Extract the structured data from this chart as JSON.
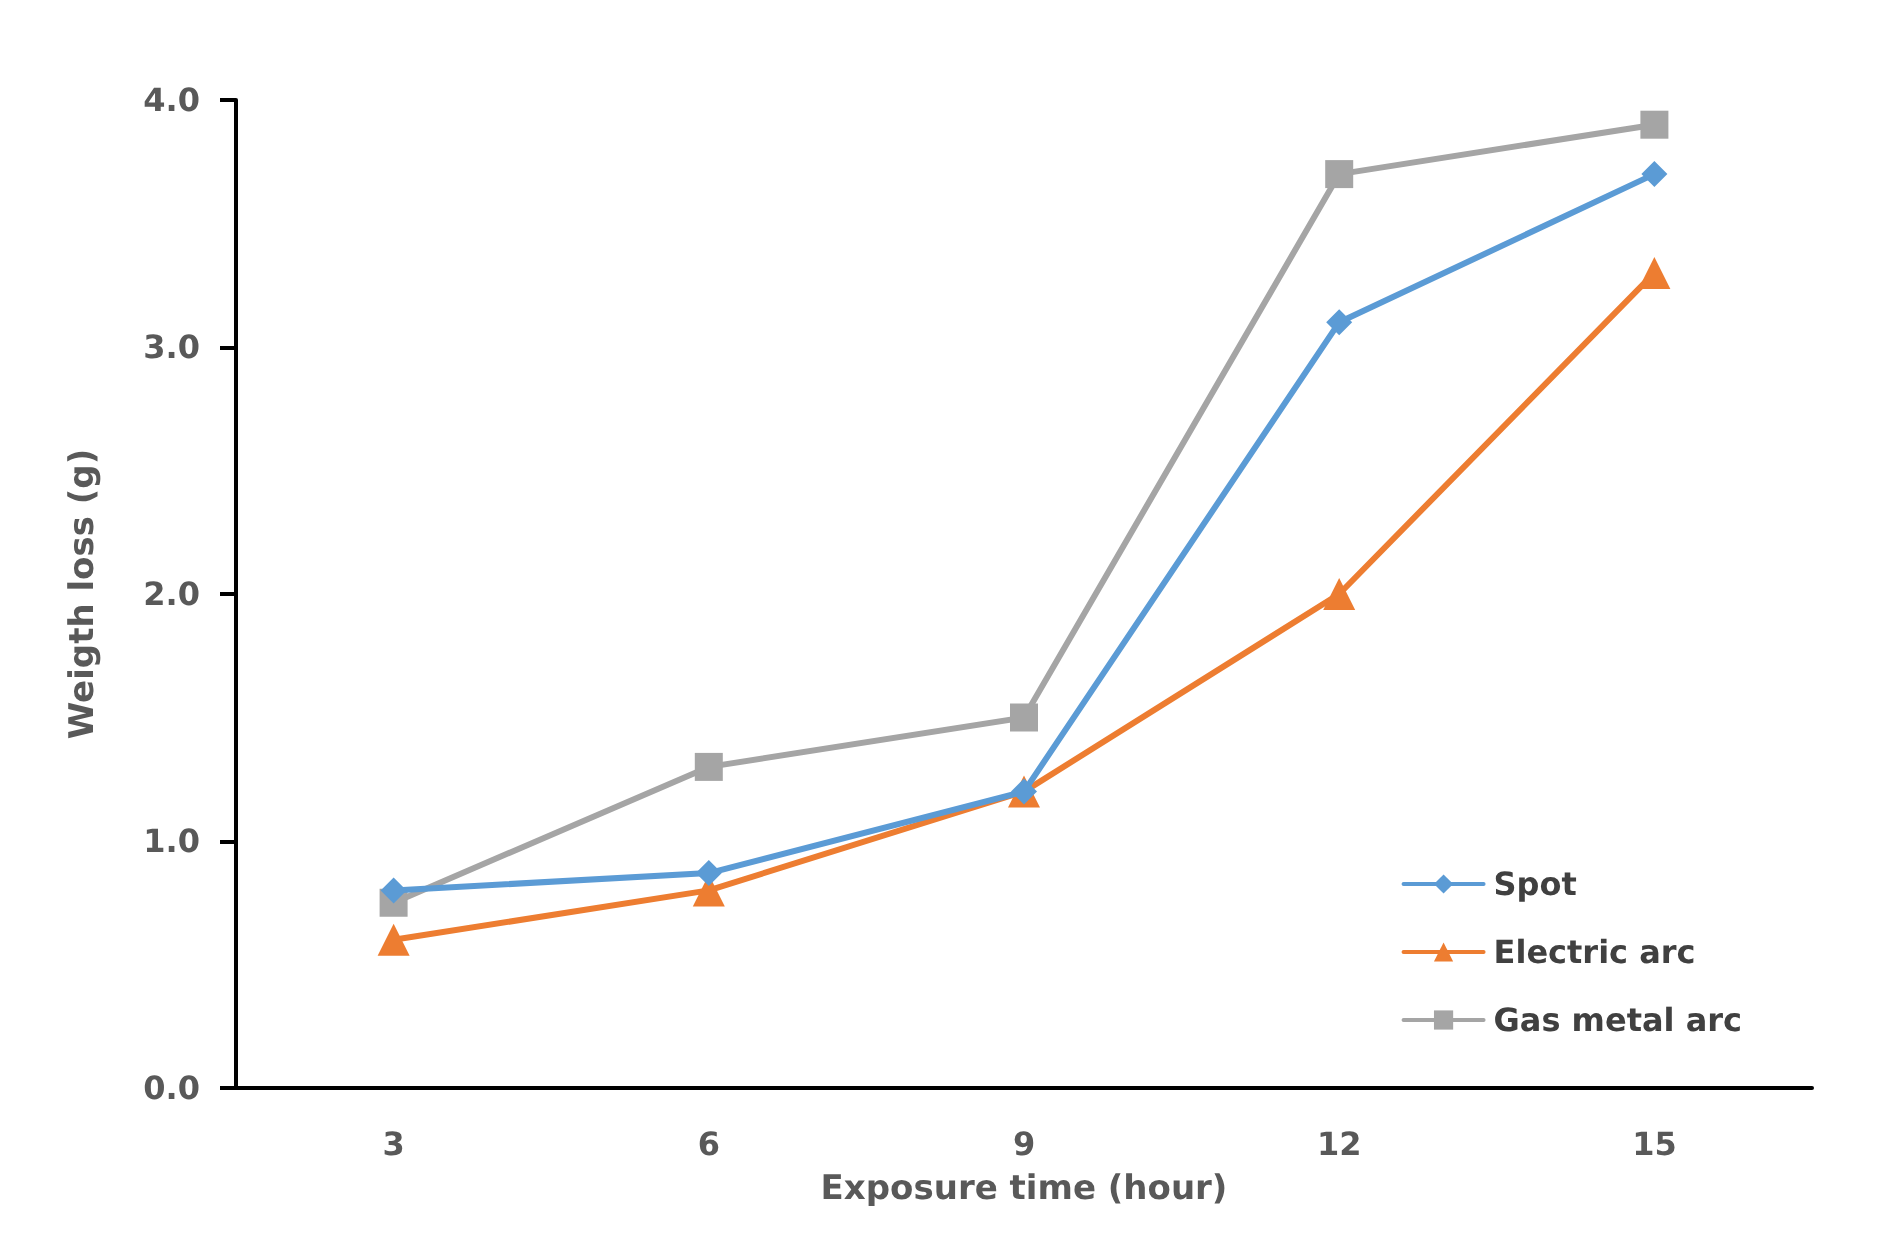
{
  "chart_data": {
    "type": "line",
    "xlabel": "Exposure time (hour)",
    "ylabel": "Weigth loss (g)",
    "categories": [
      "3",
      "6",
      "9",
      "12",
      "15"
    ],
    "series": [
      {
        "name": "Spot",
        "color": "#5b9bd5",
        "marker": "diamond",
        "values": [
          0.8,
          0.87,
          1.2,
          3.1,
          3.7
        ]
      },
      {
        "name": "Electric arc",
        "color": "#ed7d31",
        "marker": "triangle",
        "values": [
          0.6,
          0.8,
          1.2,
          2.0,
          3.3
        ]
      },
      {
        "name": "Gas metal arc",
        "color": "#a5a5a5",
        "marker": "square",
        "values": [
          0.75,
          1.3,
          1.5,
          3.7,
          3.9
        ]
      }
    ],
    "ylim": [
      0,
      4
    ],
    "yticks": [
      {
        "value": 0,
        "label": "0.0"
      },
      {
        "value": 1,
        "label": "1.0"
      },
      {
        "value": 2,
        "label": "2.0"
      },
      {
        "value": 3,
        "label": "3.0"
      },
      {
        "value": 4,
        "label": "4.0"
      }
    ],
    "grid": false,
    "legend": "bottom right",
    "line_style": "solid"
  }
}
